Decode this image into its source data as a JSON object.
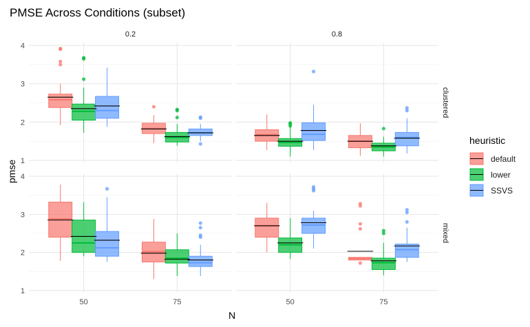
{
  "chart_data": {
    "type": "boxplot",
    "title": "PMSE Across Conditions (subset)",
    "xlabel": "N",
    "ylabel": "pmse",
    "ylim": [
      1,
      4
    ],
    "yticks": [
      1,
      2,
      3,
      4
    ],
    "grid": true,
    "legend": {
      "title": "heuristic",
      "placement": "right"
    },
    "col_facets": [
      "0.2",
      "0.8"
    ],
    "row_facets": [
      "clustered",
      "mixed"
    ],
    "categories": [
      "50",
      "75"
    ],
    "series": [
      {
        "name": "default",
        "color": "#F8766D"
      },
      {
        "name": "lower",
        "color": "#00BA38"
      },
      {
        "name": "SSVS",
        "color": "#619CFF"
      }
    ],
    "panels": [
      {
        "row": "clustered",
        "col": "0.2",
        "boxes": [
          {
            "N": "50",
            "series": "default",
            "q1": 2.38,
            "median": 2.58,
            "q3": 2.73,
            "lo": 1.92,
            "hi": 3.0,
            "mean": 2.65,
            "outliers": [
              3.9,
              3.92,
              3.5,
              3.58
            ]
          },
          {
            "N": "50",
            "series": "lower",
            "q1": 2.05,
            "median": 2.28,
            "q3": 2.47,
            "lo": 1.72,
            "hi": 2.9,
            "mean": 2.35,
            "outliers": [
              3.65,
              3.68,
              3.12
            ]
          },
          {
            "N": "50",
            "series": "SSVS",
            "q1": 2.1,
            "median": 2.3,
            "q3": 2.67,
            "lo": 1.88,
            "hi": 3.42,
            "mean": 2.42,
            "outliers": []
          },
          {
            "N": "75",
            "series": "default",
            "q1": 1.7,
            "median": 1.83,
            "q3": 1.97,
            "lo": 1.45,
            "hi": 2.18,
            "mean": 1.82,
            "outliers": [
              2.4
            ]
          },
          {
            "N": "75",
            "series": "lower",
            "q1": 1.48,
            "median": 1.6,
            "q3": 1.73,
            "lo": 1.38,
            "hi": 1.95,
            "mean": 1.62,
            "outliers": [
              2.3,
              2.33,
              2.12
            ]
          },
          {
            "N": "75",
            "series": "SSVS",
            "q1": 1.65,
            "median": 1.72,
            "q3": 1.82,
            "lo": 1.5,
            "hi": 1.95,
            "mean": 1.72,
            "outliers": [
              2.1,
              2.13,
              1.43
            ]
          }
        ]
      },
      {
        "row": "clustered",
        "col": "0.8",
        "boxes": [
          {
            "N": "50",
            "series": "default",
            "q1": 1.5,
            "median": 1.67,
            "q3": 1.8,
            "lo": 1.27,
            "hi": 2.2,
            "mean": 1.65,
            "outliers": []
          },
          {
            "N": "50",
            "series": "lower",
            "q1": 1.37,
            "median": 1.47,
            "q3": 1.57,
            "lo": 1.1,
            "hi": 1.93,
            "mean": 1.5,
            "outliers": [
              1.9,
              1.95,
              1.98
            ]
          },
          {
            "N": "50",
            "series": "SSVS",
            "q1": 1.52,
            "median": 1.68,
            "q3": 1.98,
            "lo": 1.27,
            "hi": 2.45,
            "mean": 1.78,
            "outliers": [
              3.32
            ]
          },
          {
            "N": "75",
            "series": "default",
            "q1": 1.33,
            "median": 1.5,
            "q3": 1.65,
            "lo": 1.12,
            "hi": 1.97,
            "mean": 1.5,
            "outliers": []
          },
          {
            "N": "75",
            "series": "lower",
            "q1": 1.25,
            "median": 1.35,
            "q3": 1.45,
            "lo": 1.1,
            "hi": 1.62,
            "mean": 1.38,
            "outliers": [
              1.83
            ]
          },
          {
            "N": "75",
            "series": "SSVS",
            "q1": 1.38,
            "median": 1.6,
            "q3": 1.73,
            "lo": 1.18,
            "hi": 2.1,
            "mean": 1.58,
            "outliers": [
              2.3,
              2.37
            ]
          }
        ]
      },
      {
        "row": "mixed",
        "col": "0.2",
        "boxes": [
          {
            "N": "50",
            "series": "default",
            "q1": 2.4,
            "median": 2.88,
            "q3": 3.32,
            "lo": 1.78,
            "hi": 3.78,
            "mean": 2.85,
            "outliers": []
          },
          {
            "N": "50",
            "series": "lower",
            "q1": 2.0,
            "median": 2.25,
            "q3": 2.85,
            "lo": 1.9,
            "hi": 3.32,
            "mean": 2.42,
            "outliers": []
          },
          {
            "N": "50",
            "series": "SSVS",
            "q1": 1.9,
            "median": 2.12,
            "q3": 2.55,
            "lo": 1.75,
            "hi": 3.45,
            "mean": 2.32,
            "outliers": [
              3.67
            ]
          },
          {
            "N": "75",
            "series": "default",
            "q1": 1.75,
            "median": 2.02,
            "q3": 2.27,
            "lo": 1.3,
            "hi": 2.88,
            "mean": 1.98,
            "outliers": []
          },
          {
            "N": "75",
            "series": "lower",
            "q1": 1.72,
            "median": 1.85,
            "q3": 2.07,
            "lo": 1.38,
            "hi": 2.5,
            "mean": 1.82,
            "outliers": []
          },
          {
            "N": "75",
            "series": "SSVS",
            "q1": 1.63,
            "median": 1.73,
            "q3": 1.9,
            "lo": 1.38,
            "hi": 2.2,
            "mean": 1.8,
            "outliers": [
              2.4,
              2.45,
              2.65,
              2.77
            ]
          }
        ]
      },
      {
        "row": "mixed",
        "col": "0.8",
        "boxes": [
          {
            "N": "50",
            "series": "default",
            "q1": 2.4,
            "median": 2.7,
            "q3": 2.9,
            "lo": 2.0,
            "hi": 3.3,
            "mean": 2.7,
            "outliers": []
          },
          {
            "N": "50",
            "series": "lower",
            "q1": 2.0,
            "median": 2.2,
            "q3": 2.38,
            "lo": 1.83,
            "hi": 2.9,
            "mean": 2.25,
            "outliers": []
          },
          {
            "N": "50",
            "series": "SSVS",
            "q1": 2.5,
            "median": 2.72,
            "q3": 2.9,
            "lo": 2.1,
            "hi": 3.1,
            "mean": 2.78,
            "outliers": [
              3.62,
              3.67,
              3.72
            ]
          },
          {
            "N": "75",
            "series": "default",
            "q1": 1.8,
            "median": 1.84,
            "q3": 1.87,
            "lo": 1.8,
            "hi": 1.87,
            "mean": 2.03,
            "outliers": [
              3.22,
              3.28,
              2.62,
              2.75,
              1.72
            ]
          },
          {
            "N": "75",
            "series": "lower",
            "q1": 1.55,
            "median": 1.73,
            "q3": 1.85,
            "lo": 1.4,
            "hi": 2.25,
            "mean": 1.78,
            "outliers": [
              2.5,
              2.57
            ]
          },
          {
            "N": "75",
            "series": "SSVS",
            "q1": 1.87,
            "median": 2.07,
            "q3": 2.22,
            "lo": 1.75,
            "hi": 2.65,
            "mean": 2.17,
            "outliers": [
              2.8,
              3.05,
              3.12
            ]
          }
        ]
      }
    ]
  }
}
